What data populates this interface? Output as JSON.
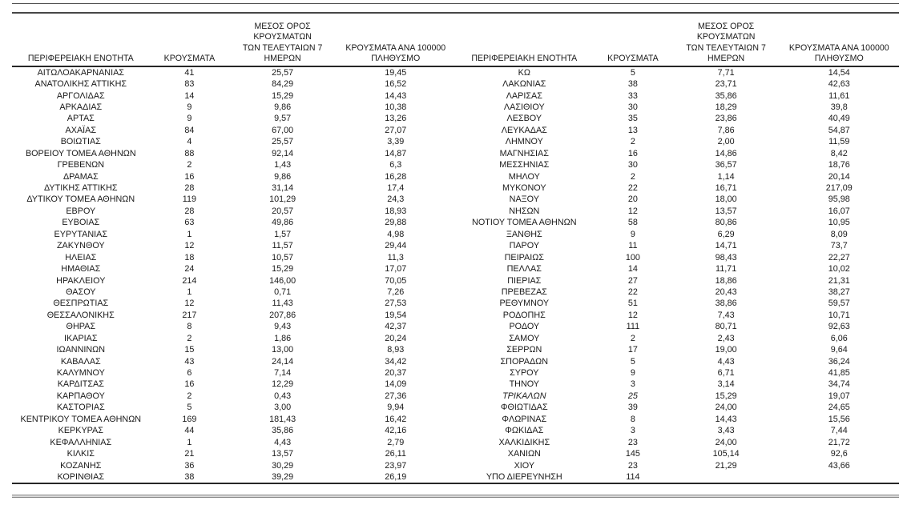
{
  "columns": {
    "region": "ΠΕΡΙΦΕΡΕΙΑΚΗ ΕΝΟΤΗΤΑ",
    "cases": "ΚΡΟΥΣΜΑΤΑ",
    "avg7_line1": "ΜΕΣΟΣ ΟΡΟΣ ΚΡΟΥΣΜΑΤΩΝ",
    "avg7_line2": "ΤΩΝ ΤΕΛΕΥΤΑΙΩΝ 7",
    "avg7_line3": "ΗΜΕΡΩΝ",
    "per100k_line1": "ΚΡΟΥΣΜΑΤΑ ΑΝΑ 100000",
    "per100k_line2": "ΠΛΗΘΥΣΜΟ"
  },
  "tables": {
    "left": {
      "rows": [
        [
          "ΑΙΤΩΛΟΑΚΑΡΝΑΝΙΑΣ",
          "41",
          "25,57",
          "19,45"
        ],
        [
          "ΑΝΑΤΟΛΙΚΗΣ ΑΤΤΙΚΗΣ",
          "83",
          "84,29",
          "16,52"
        ],
        [
          "ΑΡΓΟΛΙΔΑΣ",
          "14",
          "15,29",
          "14,43"
        ],
        [
          "ΑΡΚΑΔΙΑΣ",
          "9",
          "9,86",
          "10,38"
        ],
        [
          "ΑΡΤΑΣ",
          "9",
          "9,57",
          "13,26"
        ],
        [
          "ΑΧΑΪΑΣ",
          "84",
          "67,00",
          "27,07"
        ],
        [
          "ΒΟΙΩΤΙΑΣ",
          "4",
          "25,57",
          "3,39"
        ],
        [
          "ΒΟΡΕΙΟΥ ΤΟΜΕΑ ΑΘΗΝΩΝ",
          "88",
          "92,14",
          "14,87"
        ],
        [
          "ΓΡΕΒΕΝΩΝ",
          "2",
          "1,43",
          "6,3"
        ],
        [
          "ΔΡΑΜΑΣ",
          "16",
          "9,86",
          "16,28"
        ],
        [
          "ΔΥΤΙΚΗΣ ΑΤΤΙΚΗΣ",
          "28",
          "31,14",
          "17,4"
        ],
        [
          "ΔΥΤΙΚΟΥ ΤΟΜΕΑ ΑΘΗΝΩΝ",
          "119",
          "101,29",
          "24,3"
        ],
        [
          "ΕΒΡΟΥ",
          "28",
          "20,57",
          "18,93"
        ],
        [
          "ΕΥΒΟΙΑΣ",
          "63",
          "49,86",
          "29,88"
        ],
        [
          "ΕΥΡΥΤΑΝΙΑΣ",
          "1",
          "1,57",
          "4,98"
        ],
        [
          "ΖΑΚΥΝΘΟΥ",
          "12",
          "11,57",
          "29,44"
        ],
        [
          "ΗΛΕΙΑΣ",
          "18",
          "10,57",
          "11,3"
        ],
        [
          "ΗΜΑΘΙΑΣ",
          "24",
          "15,29",
          "17,07"
        ],
        [
          "ΗΡΑΚΛΕΙΟΥ",
          "214",
          "146,00",
          "70,05"
        ],
        [
          "ΘΑΣΟΥ",
          "1",
          "0,71",
          "7,26"
        ],
        [
          "ΘΕΣΠΡΩΤΙΑΣ",
          "12",
          "11,43",
          "27,53"
        ],
        [
          "ΘΕΣΣΑΛΟΝΙΚΗΣ",
          "217",
          "207,86",
          "19,54"
        ],
        [
          "ΘΗΡΑΣ",
          "8",
          "9,43",
          "42,37"
        ],
        [
          "ΙΚΑΡΙΑΣ",
          "2",
          "1,86",
          "20,24"
        ],
        [
          "ΙΩΑΝΝΙΝΩΝ",
          "15",
          "13,00",
          "8,93"
        ],
        [
          "ΚΑΒΑΛΑΣ",
          "43",
          "24,14",
          "34,42"
        ],
        [
          "ΚΑΛΥΜΝΟΥ",
          "6",
          "7,14",
          "20,37"
        ],
        [
          "ΚΑΡΔΙΤΣΑΣ",
          "16",
          "12,29",
          "14,09"
        ],
        [
          "ΚΑΡΠΑΘΟΥ",
          "2",
          "0,43",
          "27,36"
        ],
        [
          "ΚΑΣΤΟΡΙΑΣ",
          "5",
          "3,00",
          "9,94"
        ],
        [
          "ΚΕΝΤΡΙΚΟΥ ΤΟΜΕΑ ΑΘΗΝΩΝ",
          "169",
          "181,43",
          "16,42"
        ],
        [
          "ΚΕΡΚΥΡΑΣ",
          "44",
          "35,86",
          "42,16"
        ],
        [
          "ΚΕΦΑΛΛΗΝΙΑΣ",
          "1",
          "4,43",
          "2,79"
        ],
        [
          "ΚΙΛΚΙΣ",
          "21",
          "13,57",
          "26,11"
        ],
        [
          "ΚΟΖΑΝΗΣ",
          "36",
          "30,29",
          "23,97"
        ],
        [
          "ΚΟΡΙΝΘΙΑΣ",
          "38",
          "39,29",
          "26,19"
        ]
      ],
      "italic": null
    },
    "right": {
      "rows": [
        [
          "ΚΩ",
          "5",
          "7,71",
          "14,54"
        ],
        [
          "ΛΑΚΩΝΙΑΣ",
          "38",
          "23,71",
          "42,63"
        ],
        [
          "ΛΑΡΙΣΑΣ",
          "33",
          "35,86",
          "11,61"
        ],
        [
          "ΛΑΣΙΘΙΟΥ",
          "30",
          "18,29",
          "39,8"
        ],
        [
          "ΛΕΣΒΟΥ",
          "35",
          "23,86",
          "40,49"
        ],
        [
          "ΛΕΥΚΑΔΑΣ",
          "13",
          "7,86",
          "54,87"
        ],
        [
          "ΛΗΜΝΟΥ",
          "2",
          "2,00",
          "11,59"
        ],
        [
          "ΜΑΓΝΗΣΙΑΣ",
          "16",
          "14,86",
          "8,42"
        ],
        [
          "ΜΕΣΣΗΝΙΑΣ",
          "30",
          "36,57",
          "18,76"
        ],
        [
          "ΜΗΛΟΥ",
          "2",
          "1,14",
          "20,14"
        ],
        [
          "ΜΥΚΟΝΟΥ",
          "22",
          "16,71",
          "217,09"
        ],
        [
          "ΝΑΞΟΥ",
          "20",
          "18,00",
          "95,98"
        ],
        [
          "ΝΗΣΩΝ",
          "12",
          "13,57",
          "16,07"
        ],
        [
          "ΝΟΤΙΟΥ ΤΟΜΕΑ ΑΘΗΝΩΝ",
          "58",
          "80,86",
          "10,95"
        ],
        [
          "ΞΑΝΘΗΣ",
          "9",
          "6,29",
          "8,09"
        ],
        [
          "ΠΑΡΟΥ",
          "11",
          "14,71",
          "73,7"
        ],
        [
          "ΠΕΙΡΑΙΩΣ",
          "100",
          "98,43",
          "22,27"
        ],
        [
          "ΠΕΛΛΑΣ",
          "14",
          "11,71",
          "10,02"
        ],
        [
          "ΠΙΕΡΙΑΣ",
          "27",
          "18,86",
          "21,31"
        ],
        [
          "ΠΡΕΒΕΖΑΣ",
          "22",
          "20,43",
          "38,27"
        ],
        [
          "ΡΕΘΥΜΝΟΥ",
          "51",
          "38,86",
          "59,57"
        ],
        [
          "ΡΟΔΟΠΗΣ",
          "12",
          "7,43",
          "10,71"
        ],
        [
          "ΡΟΔΟΥ",
          "111",
          "80,71",
          "92,63"
        ],
        [
          "ΣΑΜΟΥ",
          "2",
          "2,43",
          "6,06"
        ],
        [
          "ΣΕΡΡΩΝ",
          "17",
          "19,00",
          "9,64"
        ],
        [
          "ΣΠΟΡΑΔΩΝ",
          "5",
          "4,43",
          "36,24"
        ],
        [
          "ΣΥΡΟΥ",
          "9",
          "6,71",
          "41,85"
        ],
        [
          "ΤΗΝΟΥ",
          "3",
          "3,14",
          "34,74"
        ],
        [
          "ΤΡΙΚΑΛΩΝ",
          "25",
          "15,29",
          "19,07"
        ],
        [
          "ΦΘΙΩΤΙΔΑΣ",
          "39",
          "24,00",
          "24,65"
        ],
        [
          "ΦΛΩΡΙΝΑΣ",
          "8",
          "14,43",
          "15,56"
        ],
        [
          "ΦΩΚΙΔΑΣ",
          "3",
          "3,43",
          "7,44"
        ],
        [
          "ΧΑΛΚΙΔΙΚΗΣ",
          "23",
          "24,00",
          "21,72"
        ],
        [
          "ΧΑΝΙΩΝ",
          "145",
          "105,14",
          "92,6"
        ],
        [
          "ΧΙΟΥ",
          "23",
          "21,29",
          "43,66"
        ],
        [
          "ΥΠΟ ΔΙΕΡΕΥΝΗΣΗ",
          "114",
          "",
          ""
        ]
      ],
      "italic": {
        "row": 28,
        "cols": [
          0,
          1
        ]
      }
    }
  }
}
